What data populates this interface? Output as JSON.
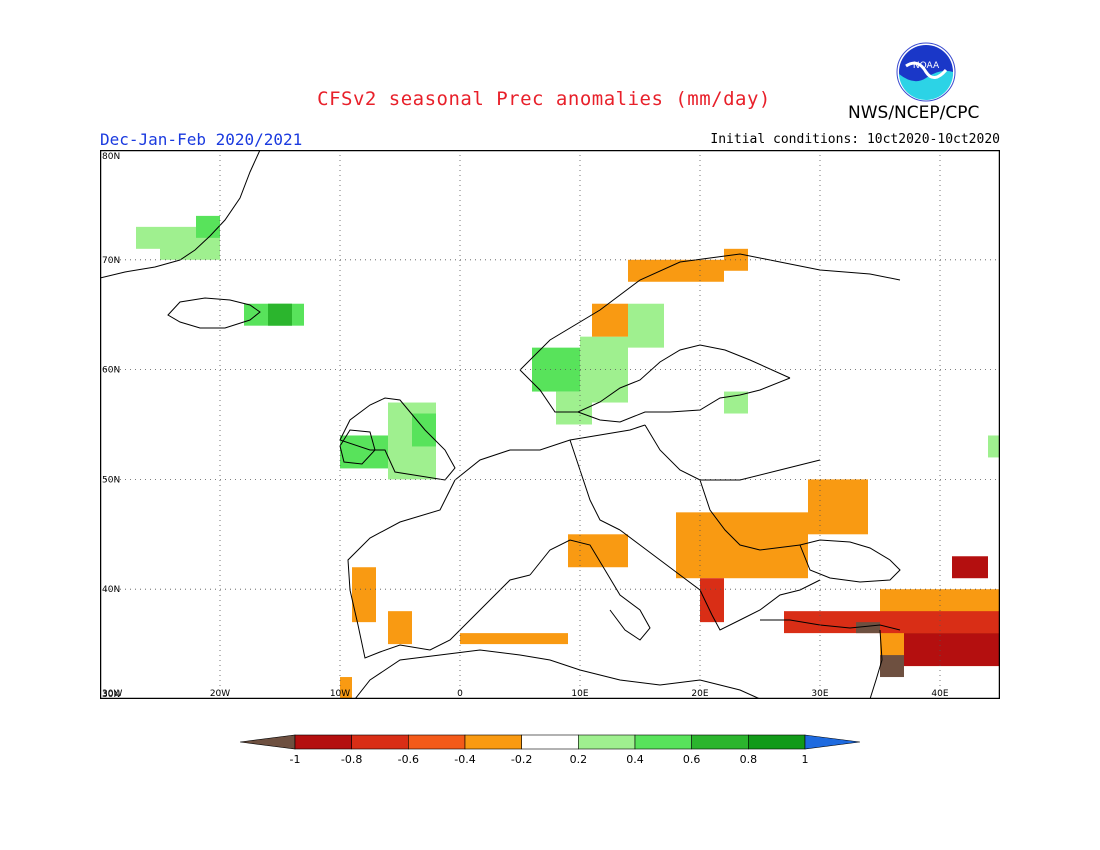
{
  "header": {
    "title": "CFSv2 seasonal Prec anomalies (mm/day)",
    "agency": "NWS/NCEP/CPC",
    "period": "Dec-Jan-Feb 2020/2021",
    "initial_conditions": "Initial conditions: 10ct2020-10ct2020",
    "logo_text": "NOAA"
  },
  "map": {
    "lon_range": [
      -30,
      45
    ],
    "lat_range": [
      30,
      80
    ],
    "lat_labels": [
      "30N",
      "40N",
      "50N",
      "60N",
      "70N",
      "80N"
    ],
    "lon_labels": [
      "30W",
      "20W",
      "10W",
      "0",
      "10E",
      "20E",
      "30E",
      "40E"
    ]
  },
  "legend": {
    "tick_labels": [
      "-1",
      "-0.8",
      "-0.6",
      "-0.4",
      "-0.2",
      "0.2",
      "0.4",
      "0.6",
      "0.8",
      "1"
    ],
    "colors": [
      "#6e5040",
      "#b40f0f",
      "#d92e16",
      "#f45a19",
      "#f99a12",
      "#ffffff",
      "#9ff08f",
      "#58e35b",
      "#2bb52d",
      "#119a18",
      "#1e6adf"
    ]
  },
  "chart_data": {
    "type": "heatmap",
    "grid_resolution_deg": 1,
    "classes": [
      {
        "class": "wet_0.2_0.4",
        "color": "#9ff08f"
      },
      {
        "class": "wet_0.4_0.6",
        "color": "#58e35b"
      },
      {
        "class": "wet_0.6_0.8",
        "color": "#2bb52d"
      },
      {
        "class": "dry_0.2_0.4",
        "color": "#f99a12"
      },
      {
        "class": "dry_0.4_0.6",
        "color": "#f45a19"
      },
      {
        "class": "dry_0.6_0.8",
        "color": "#d92e16"
      },
      {
        "class": "dry_0.8_1.0",
        "color": "#b40f0f"
      },
      {
        "class": "dry_gt_1.0",
        "color": "#6e5040"
      }
    ],
    "cells": [
      {
        "lon": [
          -25,
          -20
        ],
        "lat": [
          70,
          73
        ],
        "c": "#9ff08f"
      },
      {
        "lon": [
          -22,
          -20
        ],
        "lat": [
          72,
          74
        ],
        "c": "#58e35b"
      },
      {
        "lon": [
          -27,
          -25
        ],
        "lat": [
          71,
          73
        ],
        "c": "#9ff08f"
      },
      {
        "lon": [
          -18,
          -13
        ],
        "lat": [
          64,
          66
        ],
        "c": "#58e35b"
      },
      {
        "lon": [
          -16,
          -14
        ],
        "lat": [
          64,
          66
        ],
        "c": "#2bb52d"
      },
      {
        "lon": [
          -10,
          -6
        ],
        "lat": [
          51,
          54
        ],
        "c": "#58e35b"
      },
      {
        "lon": [
          -6,
          -2
        ],
        "lat": [
          50,
          57
        ],
        "c": "#9ff08f"
      },
      {
        "lon": [
          -4,
          -2
        ],
        "lat": [
          53,
          56
        ],
        "c": "#58e35b"
      },
      {
        "lon": [
          6,
          10
        ],
        "lat": [
          58,
          62
        ],
        "c": "#58e35b"
      },
      {
        "lon": [
          10,
          14
        ],
        "lat": [
          57,
          63
        ],
        "c": "#9ff08f"
      },
      {
        "lon": [
          14,
          17
        ],
        "lat": [
          62,
          66
        ],
        "c": "#9ff08f"
      },
      {
        "lon": [
          8,
          11
        ],
        "lat": [
          55,
          58
        ],
        "c": "#9ff08f"
      },
      {
        "lon": [
          22,
          24
        ],
        "lat": [
          56,
          58
        ],
        "c": "#9ff08f"
      },
      {
        "lon": [
          44,
          45
        ],
        "lat": [
          52,
          54
        ],
        "c": "#9ff08f"
      },
      {
        "lon": [
          11,
          14
        ],
        "lat": [
          63,
          66
        ],
        "c": "#f99a12"
      },
      {
        "lon": [
          14,
          22
        ],
        "lat": [
          68,
          70
        ],
        "c": "#f99a12"
      },
      {
        "lon": [
          22,
          24
        ],
        "lat": [
          69,
          71
        ],
        "c": "#f99a12"
      },
      {
        "lon": [
          -9,
          -7
        ],
        "lat": [
          37,
          42
        ],
        "c": "#f99a12"
      },
      {
        "lon": [
          -6,
          -4
        ],
        "lat": [
          35,
          38
        ],
        "c": "#f99a12"
      },
      {
        "lon": [
          -10,
          -9
        ],
        "lat": [
          30,
          32
        ],
        "c": "#f99a12"
      },
      {
        "lon": [
          0,
          9
        ],
        "lat": [
          35,
          36
        ],
        "c": "#f99a12"
      },
      {
        "lon": [
          9,
          14
        ],
        "lat": [
          42,
          45
        ],
        "c": "#f99a12"
      },
      {
        "lon": [
          18,
          29
        ],
        "lat": [
          41,
          47
        ],
        "c": "#f99a12"
      },
      {
        "lon": [
          29,
          34
        ],
        "lat": [
          45,
          50
        ],
        "c": "#f99a12"
      },
      {
        "lon": [
          35,
          45
        ],
        "lat": [
          33,
          40
        ],
        "c": "#f99a12"
      },
      {
        "lon": [
          20,
          22
        ],
        "lat": [
          37,
          41
        ],
        "c": "#d92e16"
      },
      {
        "lon": [
          27,
          45
        ],
        "lat": [
          36,
          38
        ],
        "c": "#d92e16"
      },
      {
        "lon": [
          37,
          45
        ],
        "lat": [
          33,
          36
        ],
        "c": "#b40f0f"
      },
      {
        "lon": [
          41,
          44
        ],
        "lat": [
          41,
          43
        ],
        "c": "#b40f0f"
      },
      {
        "lon": [
          33,
          35
        ],
        "lat": [
          36,
          37
        ],
        "c": "#6e5040"
      },
      {
        "lon": [
          35,
          37
        ],
        "lat": [
          32,
          34
        ],
        "c": "#6e5040"
      }
    ]
  }
}
